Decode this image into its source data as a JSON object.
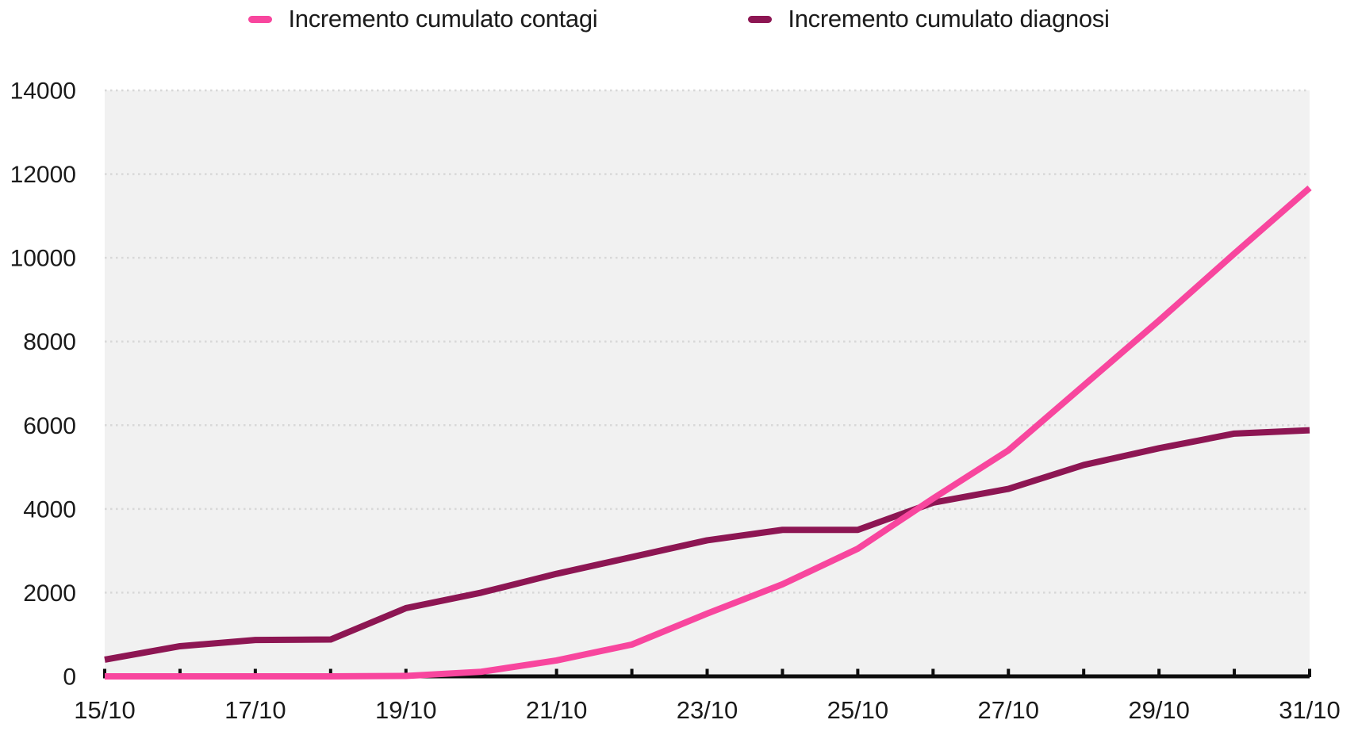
{
  "chart_data": {
    "type": "line",
    "title": "",
    "xlabel": "",
    "ylabel": "",
    "categories": [
      "15/10",
      "16/10",
      "17/10",
      "18/10",
      "19/10",
      "20/10",
      "21/10",
      "22/10",
      "23/10",
      "24/10",
      "25/10",
      "26/10",
      "27/10",
      "28/10",
      "29/10",
      "30/10",
      "31/10"
    ],
    "x_tick_labels_shown": [
      "15/10",
      "17/10",
      "19/10",
      "21/10",
      "23/10",
      "25/10",
      "27/10",
      "29/10",
      "31/10"
    ],
    "x_label_every": 2,
    "series": [
      {
        "id": "contagi",
        "name": "Incremento cumulato contagi",
        "color": "#f8469e",
        "values": [
          0,
          0,
          0,
          0,
          10,
          110,
          380,
          760,
          1500,
          2200,
          3050,
          4250,
          5400,
          6950,
          8500,
          10100,
          11670
        ]
      },
      {
        "id": "diagnosi",
        "name": "Incremento cumulato diagnosi",
        "color": "#8d1653",
        "values": [
          400,
          720,
          870,
          880,
          1630,
          2000,
          2450,
          2850,
          3250,
          3500,
          3500,
          4150,
          4480,
          5050,
          5450,
          5800,
          5880
        ]
      }
    ],
    "ylim": [
      0,
      14000
    ],
    "ytick_step": 2000,
    "ytick_labels": [
      "0",
      "2000",
      "4000",
      "6000",
      "8000",
      "10000",
      "12000",
      "14000"
    ],
    "grid": "horizontal-dotted",
    "legend_position": "top-center",
    "plot_bg": "#f1f1f1",
    "grid_color": "#d8d8d8",
    "axis_color": "#0d0d0d",
    "text_color": "#1a1a1a"
  }
}
